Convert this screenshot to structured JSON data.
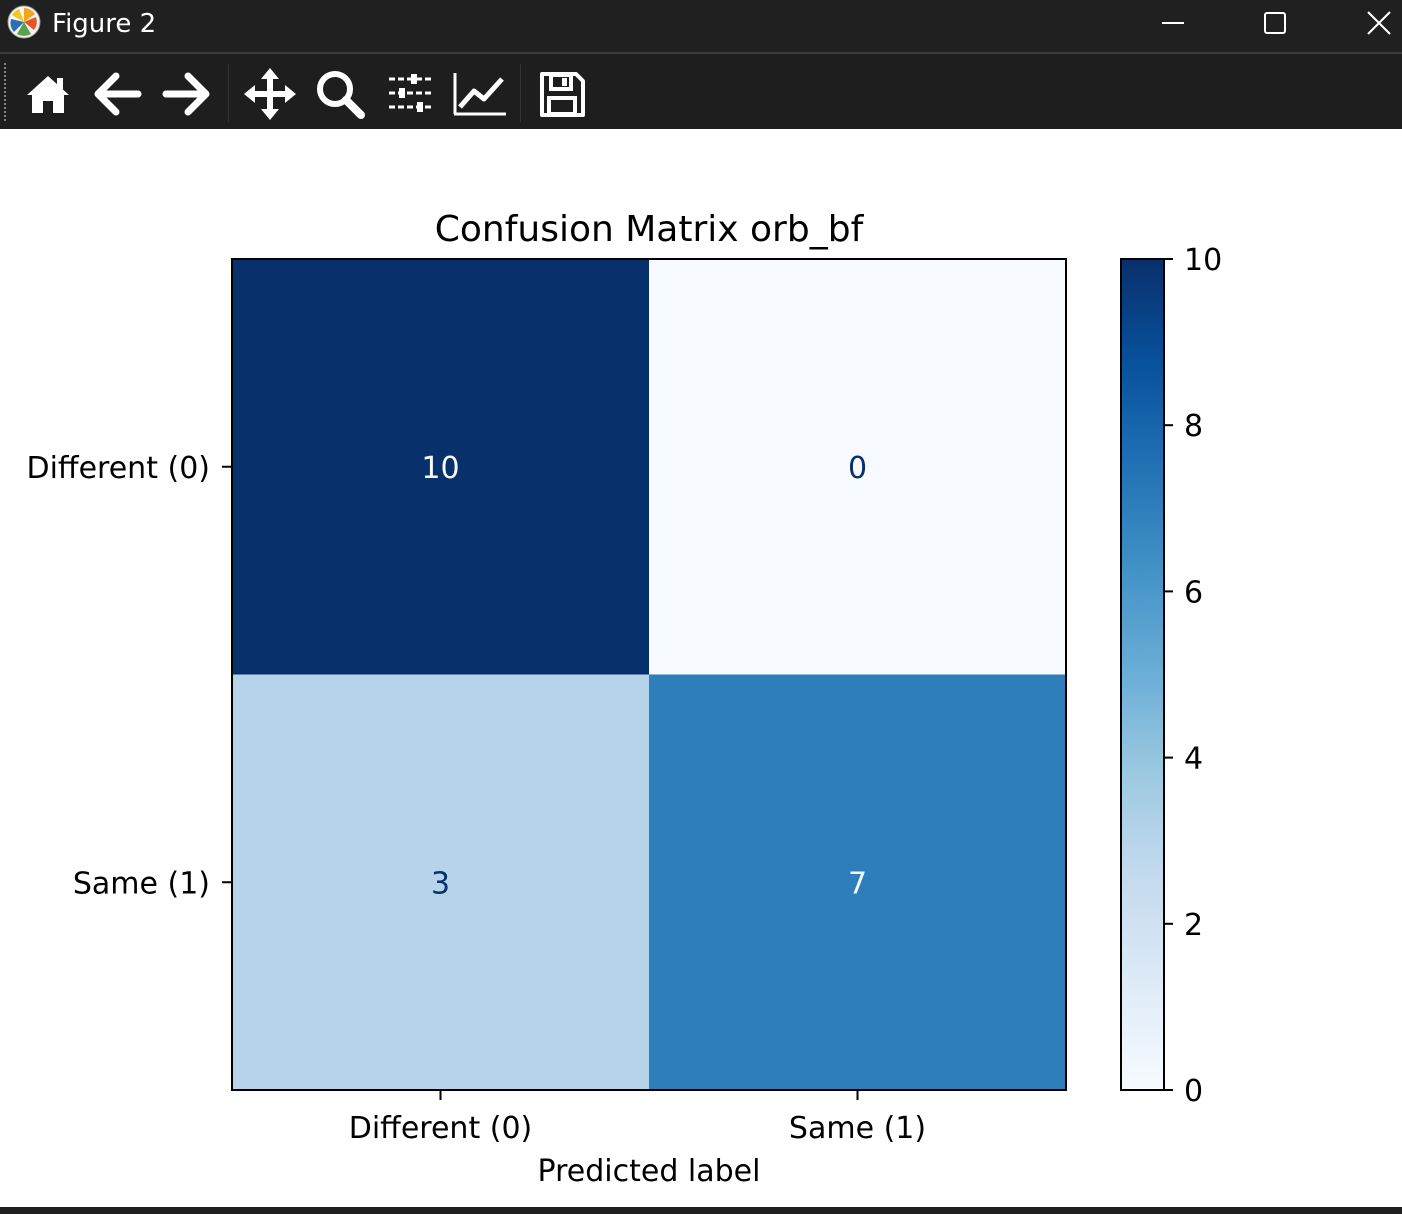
{
  "window": {
    "title": "Figure 2",
    "controls": [
      "minimize",
      "maximize",
      "close"
    ]
  },
  "toolbar": {
    "tools": [
      {
        "name": "home-button",
        "icon": "home-icon",
        "tooltip": "Reset original view"
      },
      {
        "name": "back-button",
        "icon": "arrow-left-icon",
        "tooltip": "Back to previous view"
      },
      {
        "name": "forward-button",
        "icon": "arrow-right-icon",
        "tooltip": "Forward to next view"
      },
      {
        "name": "pan-button",
        "icon": "move-icon",
        "tooltip": "Pan axes"
      },
      {
        "name": "zoom-button",
        "icon": "magnifier-icon",
        "tooltip": "Zoom to rectangle"
      },
      {
        "name": "configure-subplots-button",
        "icon": "sliders-icon",
        "tooltip": "Configure subplots"
      },
      {
        "name": "edit-axis-button",
        "icon": "line-chart-icon",
        "tooltip": "Edit axis"
      },
      {
        "name": "save-button",
        "icon": "floppy-disk-icon",
        "tooltip": "Save the figure"
      }
    ]
  },
  "chart_data": {
    "type": "heatmap",
    "title": "Confusion Matrix orb_bf",
    "xlabel": "Predicted label",
    "ylabel": "",
    "x_categories": [
      "Different (0)",
      "Same (1)"
    ],
    "y_categories": [
      "Different (0)",
      "Same (1)"
    ],
    "values": [
      [
        10,
        0
      ],
      [
        3,
        7
      ]
    ],
    "colormap": "Blues",
    "colorbar": {
      "min": 0,
      "max": 10,
      "ticks": [
        0,
        2,
        4,
        6,
        8,
        10
      ]
    },
    "cell_colors": [
      "#08306b",
      "#f7fbff",
      "#b5d4e9",
      "#2e7ebc"
    ],
    "text_colors": [
      "#f7fbff",
      "#08306b",
      "#08306b",
      "#f7fbff"
    ]
  }
}
